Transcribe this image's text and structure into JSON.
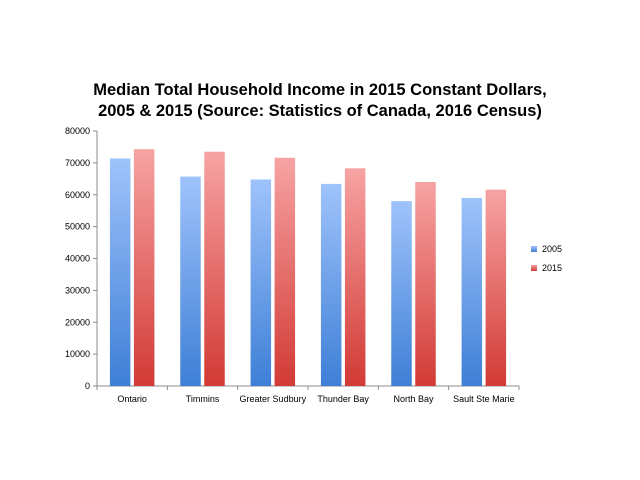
{
  "chart_data": {
    "type": "bar",
    "title_lines": [
      "Median Total Household Income in 2015 Constant Dollars,",
      "2005 & 2015 (Source: Statistics of Canada, 2016 Census)"
    ],
    "categories": [
      "Ontario",
      "Timmins",
      "Greater Sudbury",
      "Thunder Bay",
      "North Bay",
      "Sault Ste Marie"
    ],
    "series": [
      {
        "name": "2005",
        "values": [
          71400,
          65700,
          64800,
          63400,
          58000,
          59000
        ],
        "color_top": "#9fc3fb",
        "color_bottom": "#3e7fd6"
      },
      {
        "name": "2015",
        "values": [
          74300,
          73500,
          71600,
          68300,
          64000,
          61600
        ],
        "color_top": "#f7a3a3",
        "color_bottom": "#d23a35"
      }
    ],
    "ylim": [
      0,
      80000
    ],
    "yticks": [
      0,
      10000,
      20000,
      30000,
      40000,
      50000,
      60000,
      70000,
      80000
    ],
    "xlabel": "",
    "ylabel": "",
    "grid": false,
    "legend_position": "right"
  }
}
